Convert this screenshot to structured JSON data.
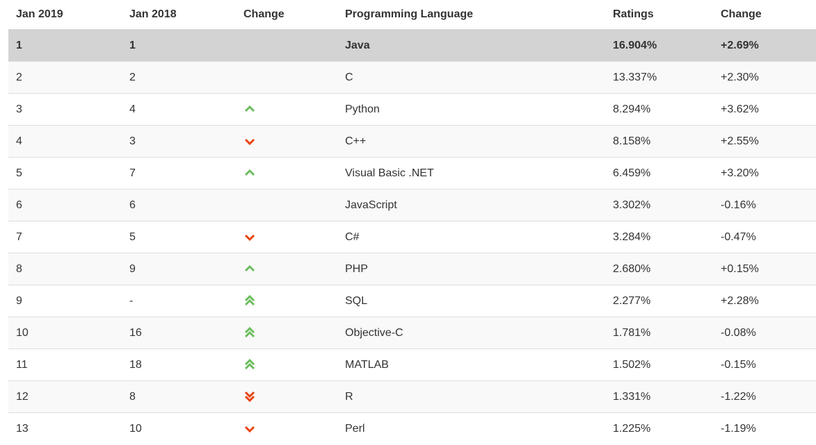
{
  "headers": [
    "Jan 2019",
    "Jan 2018",
    "Change",
    "Programming Language",
    "Ratings",
    "Change"
  ],
  "colors": {
    "up": "#6cbd5f",
    "down": "#e8440f",
    "highlight": "#d3d3d3"
  },
  "rows": [
    {
      "jan2019": "1",
      "jan2018": "1",
      "trend": "none",
      "language": "Java",
      "rating": "16.904%",
      "change": "+2.69%"
    },
    {
      "jan2019": "2",
      "jan2018": "2",
      "trend": "none",
      "language": "C",
      "rating": "13.337%",
      "change": "+2.30%"
    },
    {
      "jan2019": "3",
      "jan2018": "4",
      "trend": "up",
      "language": "Python",
      "rating": "8.294%",
      "change": "+3.62%"
    },
    {
      "jan2019": "4",
      "jan2018": "3",
      "trend": "down",
      "language": "C++",
      "rating": "8.158%",
      "change": "+2.55%"
    },
    {
      "jan2019": "5",
      "jan2018": "7",
      "trend": "up",
      "language": "Visual Basic .NET",
      "rating": "6.459%",
      "change": "+3.20%"
    },
    {
      "jan2019": "6",
      "jan2018": "6",
      "trend": "none",
      "language": "JavaScript",
      "rating": "3.302%",
      "change": "-0.16%"
    },
    {
      "jan2019": "7",
      "jan2018": "5",
      "trend": "down",
      "language": "C#",
      "rating": "3.284%",
      "change": "-0.47%"
    },
    {
      "jan2019": "8",
      "jan2018": "9",
      "trend": "up",
      "language": "PHP",
      "rating": "2.680%",
      "change": "+0.15%"
    },
    {
      "jan2019": "9",
      "jan2018": "-",
      "trend": "double-up",
      "language": "SQL",
      "rating": "2.277%",
      "change": "+2.28%"
    },
    {
      "jan2019": "10",
      "jan2018": "16",
      "trend": "double-up",
      "language": "Objective-C",
      "rating": "1.781%",
      "change": "-0.08%"
    },
    {
      "jan2019": "11",
      "jan2018": "18",
      "trend": "double-up",
      "language": "MATLAB",
      "rating": "1.502%",
      "change": "-0.15%"
    },
    {
      "jan2019": "12",
      "jan2018": "8",
      "trend": "double-down",
      "language": "R",
      "rating": "1.331%",
      "change": "-1.22%"
    },
    {
      "jan2019": "13",
      "jan2018": "10",
      "trend": "down",
      "language": "Perl",
      "rating": "1.225%",
      "change": "-1.19%"
    }
  ]
}
